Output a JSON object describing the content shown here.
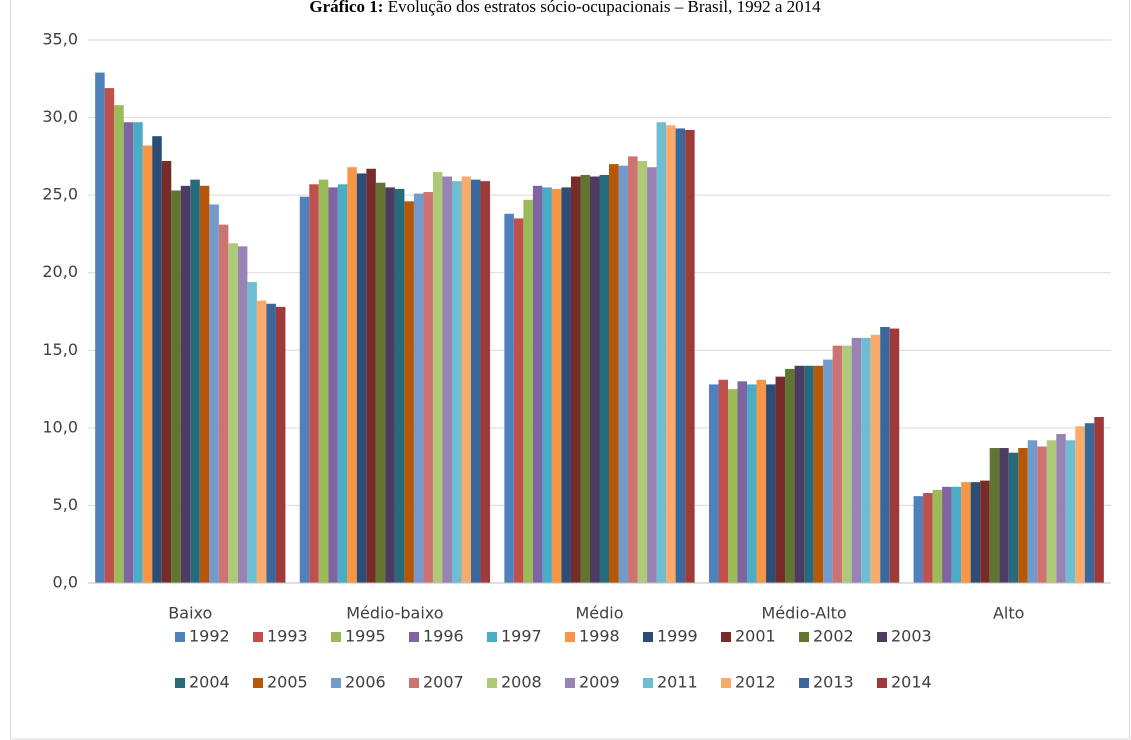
{
  "chart_data": {
    "type": "bar",
    "title_label": "Gráfico 1:",
    "title": "Evolução dos estratos sócio-ocupacionais – Brasil, 1992 a 2014",
    "categories": [
      "Baixo",
      "Médio-baixo",
      "Médio",
      "Médio-Alto",
      "Alto"
    ],
    "ylim": [
      0,
      35
    ],
    "yticks": [
      {
        "value": 0,
        "label": "0,0"
      },
      {
        "value": 5,
        "label": "5,0"
      },
      {
        "value": 10,
        "label": "10,0"
      },
      {
        "value": 15,
        "label": "15,0"
      },
      {
        "value": 20,
        "label": "20,0"
      },
      {
        "value": 25,
        "label": "25,0"
      },
      {
        "value": 30,
        "label": "30,0"
      },
      {
        "value": 35,
        "label": "35,0"
      }
    ],
    "grid": true,
    "legend": "bottom",
    "series": [
      {
        "name": "1992",
        "color": "#4f81bd",
        "values": [
          32.9,
          24.9,
          23.8,
          12.8,
          5.6
        ]
      },
      {
        "name": "1993",
        "color": "#c0504d",
        "values": [
          31.9,
          25.7,
          23.5,
          13.1,
          5.8
        ]
      },
      {
        "name": "1995",
        "color": "#9bbb59",
        "values": [
          30.8,
          26.0,
          24.7,
          12.5,
          6.0
        ]
      },
      {
        "name": "1996",
        "color": "#8064a2",
        "values": [
          29.7,
          25.5,
          25.6,
          13.0,
          6.2
        ]
      },
      {
        "name": "1997",
        "color": "#4bacc6",
        "values": [
          29.7,
          25.7,
          25.5,
          12.8,
          6.2
        ]
      },
      {
        "name": "1998",
        "color": "#f79646",
        "values": [
          28.2,
          26.8,
          25.4,
          13.1,
          6.5
        ]
      },
      {
        "name": "1999",
        "color": "#2c4d75",
        "values": [
          28.8,
          26.4,
          25.5,
          12.8,
          6.5
        ]
      },
      {
        "name": "2001",
        "color": "#772c2a",
        "values": [
          27.2,
          26.7,
          26.2,
          13.3,
          6.6
        ]
      },
      {
        "name": "2002",
        "color": "#5f7530",
        "values": [
          25.3,
          25.8,
          26.3,
          13.8,
          8.7
        ]
      },
      {
        "name": "2003",
        "color": "#4d3b62",
        "values": [
          25.6,
          25.5,
          26.2,
          14.0,
          8.7
        ]
      },
      {
        "name": "2004",
        "color": "#276a7c",
        "values": [
          26.0,
          25.4,
          26.3,
          14.0,
          8.4
        ]
      },
      {
        "name": "2005",
        "color": "#b65708",
        "values": [
          25.6,
          24.6,
          27.0,
          14.0,
          8.7
        ]
      },
      {
        "name": "2006",
        "color": "#729aca",
        "values": [
          24.4,
          25.1,
          26.9,
          14.4,
          9.2
        ]
      },
      {
        "name": "2007",
        "color": "#cd7371",
        "values": [
          23.1,
          25.2,
          27.5,
          15.3,
          8.8
        ]
      },
      {
        "name": "2008",
        "color": "#afc97a",
        "values": [
          21.9,
          26.5,
          27.2,
          15.3,
          9.2
        ]
      },
      {
        "name": "2009",
        "color": "#9983b5",
        "values": [
          21.7,
          26.2,
          26.8,
          15.8,
          9.6
        ]
      },
      {
        "name": "2011",
        "color": "#6fbdd1",
        "values": [
          19.4,
          25.9,
          29.7,
          15.8,
          9.2
        ]
      },
      {
        "name": "2012",
        "color": "#f9ab6b",
        "values": [
          18.2,
          26.2,
          29.5,
          16.0,
          10.1
        ]
      },
      {
        "name": "2013",
        "color": "#3a679c",
        "values": [
          18.0,
          26.0,
          29.3,
          16.5,
          10.3
        ]
      },
      {
        "name": "2014",
        "color": "#9e3a38",
        "values": [
          17.8,
          25.9,
          29.2,
          16.4,
          10.7
        ]
      }
    ]
  }
}
